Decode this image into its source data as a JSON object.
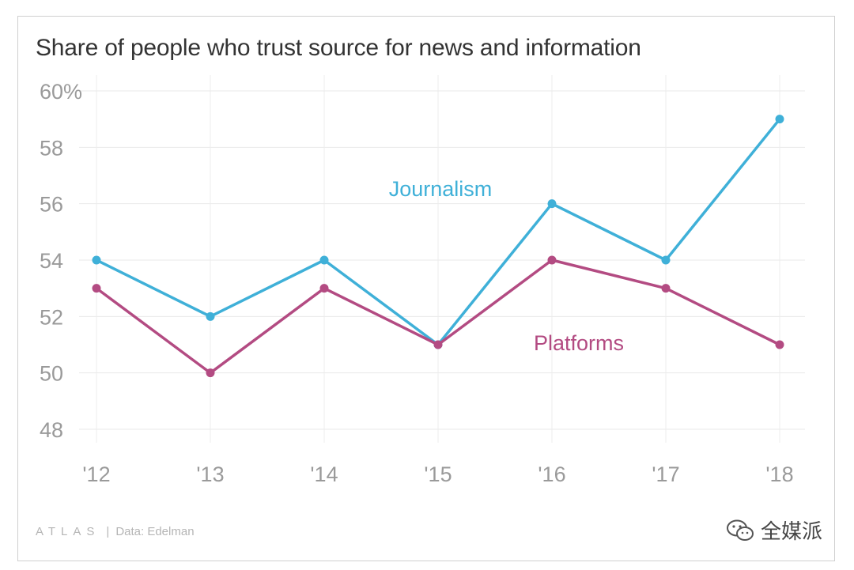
{
  "chart_data": {
    "type": "line",
    "title": "Share of people who trust source for news and information",
    "categories": [
      "'12",
      "'13",
      "'14",
      "'15",
      "'16",
      "'17",
      "'18"
    ],
    "y_tick_labels": [
      "60%",
      "58",
      "56",
      "54",
      "52",
      "50",
      "48"
    ],
    "y_ticks": [
      60,
      58,
      56,
      54,
      52,
      50,
      48
    ],
    "ylim": [
      48,
      60
    ],
    "grid": true,
    "series": [
      {
        "name": "Journalism",
        "color": "#3fb0d8",
        "values": [
          54,
          52,
          54,
          51,
          56,
          54,
          59
        ]
      },
      {
        "name": "Platforms",
        "color": "#b34b82",
        "values": [
          53,
          50,
          53,
          51,
          54,
          53,
          51
        ]
      }
    ]
  },
  "footer": {
    "brand": "ATLAS",
    "separator": "|",
    "source": "Data: Edelman"
  },
  "watermark": {
    "text": "全媒派",
    "icon": "wechat-icon"
  }
}
